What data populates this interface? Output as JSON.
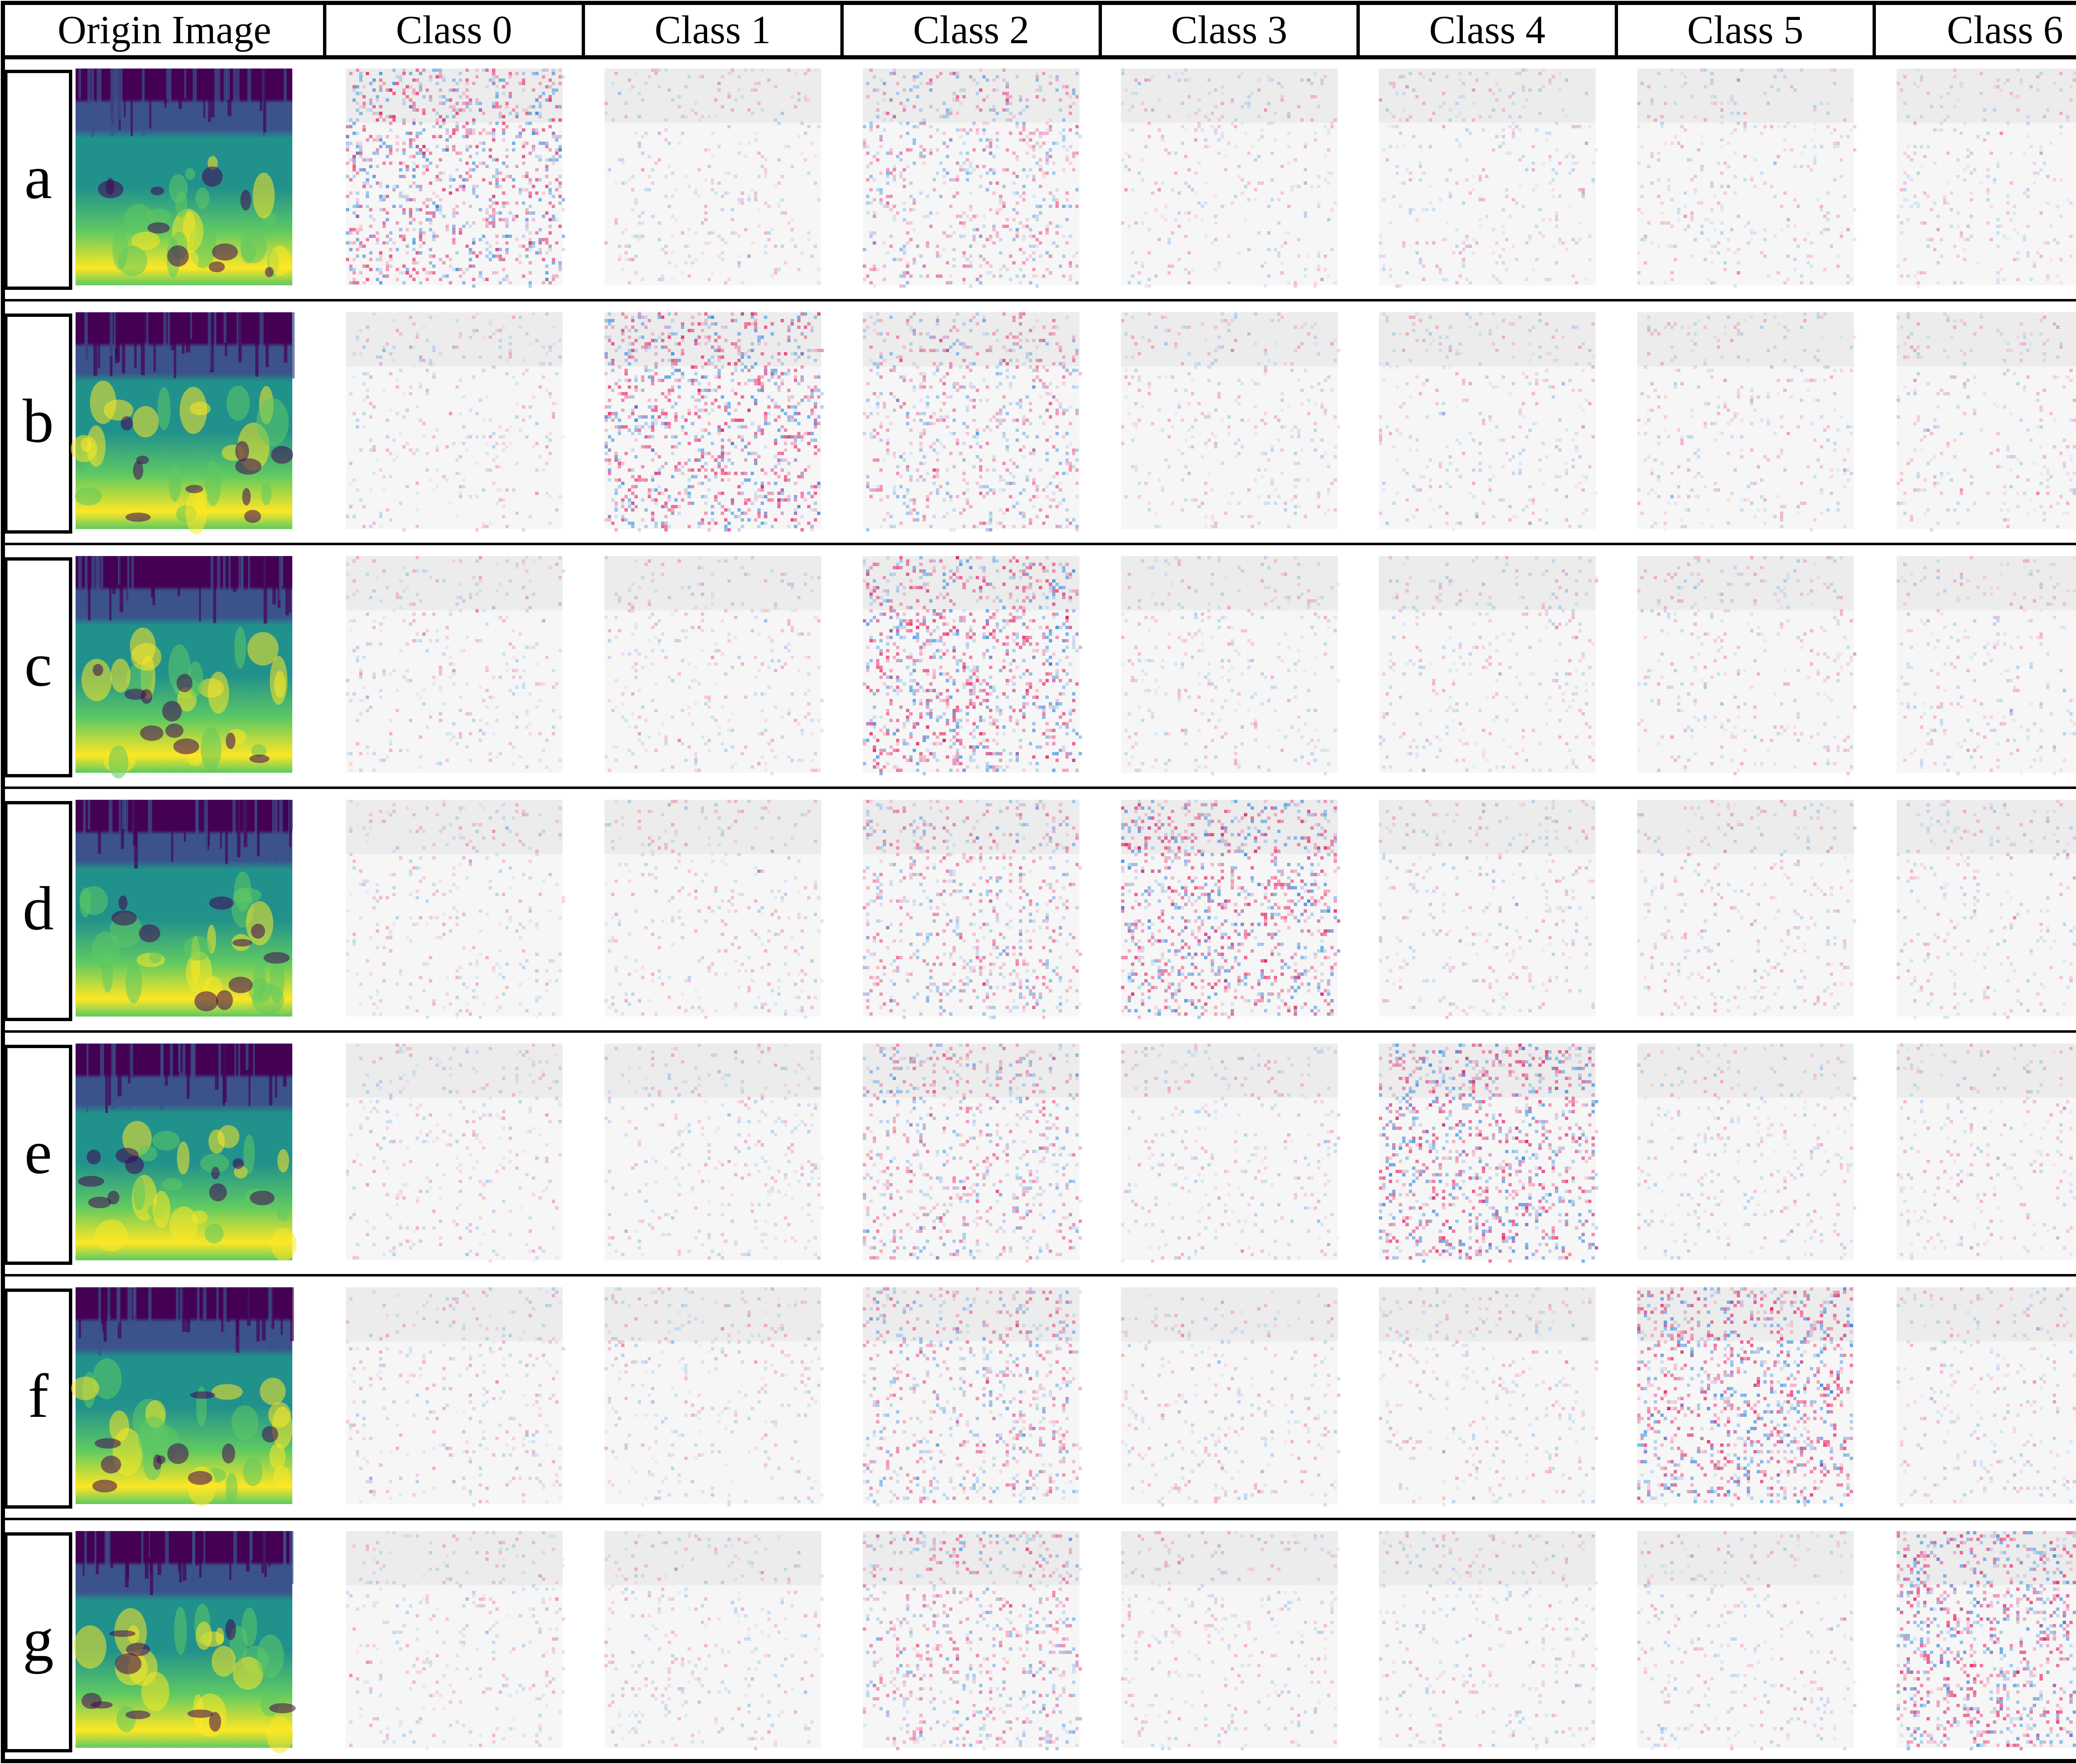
{
  "figure": {
    "header": {
      "origin_label": "Origin Image",
      "class_labels": [
        "Class 0",
        "Class 1",
        "Class 2",
        "Class 3",
        "Class 4",
        "Class 5",
        "Class 6"
      ]
    },
    "rows": [
      {
        "label": "a",
        "target_class": 0
      },
      {
        "label": "b",
        "target_class": 1
      },
      {
        "label": "c",
        "target_class": 2
      },
      {
        "label": "d",
        "target_class": 3
      },
      {
        "label": "e",
        "target_class": 4
      },
      {
        "label": "f",
        "target_class": 5
      },
      {
        "label": "g",
        "target_class": 6
      }
    ],
    "colors": {
      "border": "#000000",
      "background": "#ffffff",
      "spectrogram": [
        "#440154",
        "#3b528b",
        "#21918c",
        "#5ec962",
        "#fde725"
      ],
      "attribution_positive": "#e8175d",
      "attribution_negative": "#2e86de",
      "attribution_base": "#eeeeee"
    }
  }
}
